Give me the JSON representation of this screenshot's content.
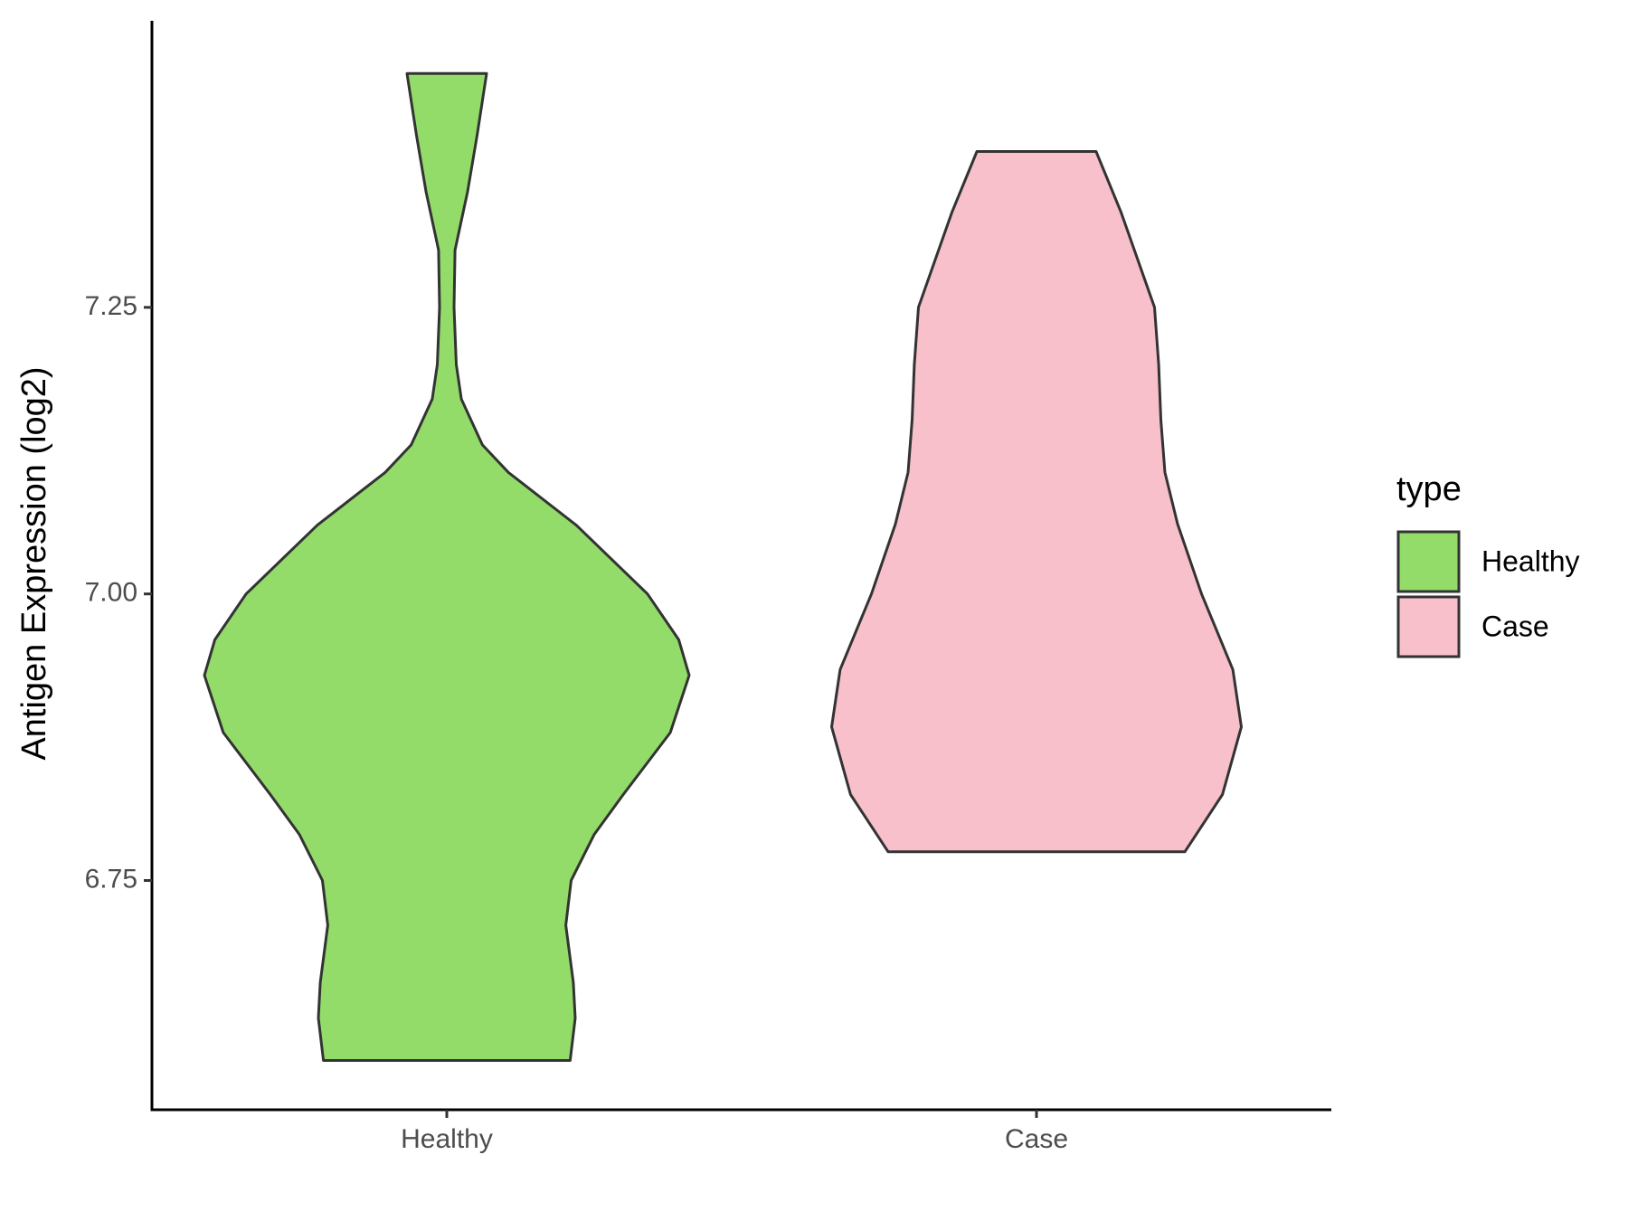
{
  "chart_data": {
    "type": "violin",
    "y_label": "Antigen Expression (log2)",
    "categories": [
      "Healthy",
      "Case"
    ],
    "legend_title": "type",
    "series": [
      {
        "name": "Healthy",
        "color": "#93dc6a",
        "y": [
          7.454,
          7.4,
          7.351,
          7.3,
          7.25,
          7.2,
          7.17,
          7.13,
          7.106,
          7.06,
          7.0,
          6.96,
          6.929,
          6.879,
          6.825,
          6.79,
          6.75,
          6.711,
          6.661,
          6.63,
          6.593
        ],
        "width": [
          0.164,
          0.125,
          0.086,
          0.034,
          0.03,
          0.039,
          0.06,
          0.147,
          0.254,
          0.534,
          0.828,
          0.957,
          1.0,
          0.922,
          0.728,
          0.608,
          0.513,
          0.491,
          0.522,
          0.53,
          0.509
        ]
      },
      {
        "name": "Case",
        "color": "#f7c0cb",
        "y": [
          7.386,
          7.333,
          7.25,
          7.2,
          7.152,
          7.106,
          7.061,
          7.0,
          6.934,
          6.884,
          6.825,
          6.775
        ],
        "width": [
          0.246,
          0.349,
          0.487,
          0.504,
          0.513,
          0.53,
          0.582,
          0.681,
          0.81,
          0.845,
          0.767,
          0.612
        ]
      }
    ],
    "ylim": [
      6.55,
      7.5
    ],
    "yticks": [
      6.75,
      {
        "value": 7.0,
        "label": "7.00"
      },
      7.25
    ]
  }
}
